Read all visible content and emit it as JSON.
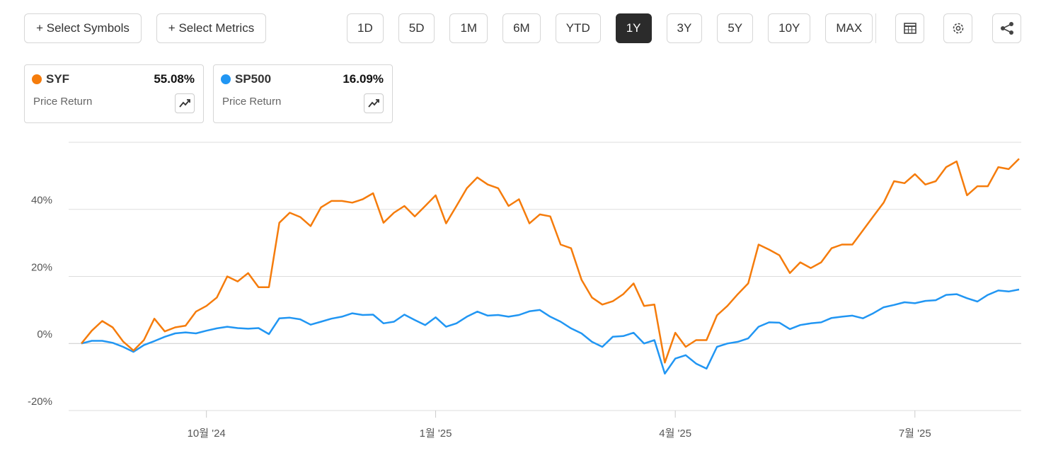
{
  "toolbar": {
    "select_symbols": "+ Select Symbols",
    "select_metrics": "+ Select Metrics",
    "periods": [
      "1D",
      "5D",
      "1M",
      "6M",
      "YTD",
      "1Y",
      "3Y",
      "5Y",
      "10Y",
      "MAX"
    ],
    "selected_period_index": 5
  },
  "cards": [
    {
      "return": "55.08%",
      "metric": "Price Return"
    },
    {
      "return": "16.09%",
      "metric": "Price Return"
    }
  ],
  "chart_data": {
    "type": "line",
    "categories": [
      null,
      null,
      null,
      null,
      null,
      null,
      null,
      null,
      null,
      null,
      null,
      null,
      "10월 '24",
      null,
      null,
      null,
      null,
      null,
      null,
      null,
      null,
      null,
      null,
      null,
      null,
      null,
      null,
      null,
      null,
      null,
      null,
      null,
      null,
      null,
      "1월 '25",
      null,
      null,
      null,
      null,
      null,
      null,
      null,
      null,
      null,
      null,
      null,
      null,
      null,
      null,
      null,
      null,
      null,
      null,
      null,
      null,
      null,
      null,
      "4월 '25",
      null,
      null,
      null,
      null,
      null,
      null,
      null,
      null,
      null,
      null,
      null,
      null,
      null,
      null,
      null,
      null,
      null,
      null,
      null,
      null,
      null,
      null,
      "7월 '25",
      null,
      null,
      null,
      null,
      null,
      null,
      null,
      null,
      null,
      null
    ],
    "series": [
      {
        "name": "SYF",
        "color": "#f57c0c",
        "values": [
          0,
          3.8,
          6.7,
          4.8,
          0.6,
          -2.1,
          1,
          7.4,
          3.6,
          4.8,
          5.3,
          9.5,
          11.2,
          13.7,
          20,
          18.5,
          21,
          16.8,
          16.8,
          36,
          39,
          37.7,
          35,
          40.6,
          42.5,
          42.5,
          42,
          43,
          44.8,
          36,
          39,
          41,
          37.9,
          41,
          44.2,
          35.8,
          41,
          46.3,
          49.5,
          47.4,
          46.3,
          41,
          43,
          35.8,
          38.5,
          37.9,
          29.5,
          28.4,
          19,
          13.7,
          11.6,
          12.6,
          14.7,
          17.9,
          11.2,
          11.6,
          -5.7,
          3.2,
          -1,
          1,
          1,
          8.4,
          11.2,
          14.7,
          17.9,
          29.5,
          28,
          26.3,
          21,
          24.2,
          22.5,
          24.2,
          28.4,
          29.5,
          29.5,
          33.7,
          37.9,
          42,
          48.4,
          47.8,
          50.5,
          47.4,
          48.4,
          52.6,
          54.3,
          44.2,
          46.9,
          46.9,
          52.6,
          52,
          55.08
        ]
      },
      {
        "name": "SP500",
        "color": "#2196f3",
        "values": [
          0,
          0.8,
          0.8,
          0.2,
          -1,
          -2.5,
          -0.5,
          0.7,
          2,
          3,
          3.3,
          3,
          3.8,
          4.5,
          5,
          4.6,
          4.4,
          4.6,
          2.8,
          7.5,
          7.7,
          7.2,
          5.6,
          6.5,
          7.4,
          8,
          9,
          8.5,
          8.6,
          6,
          6.5,
          8.6,
          7,
          5.5,
          7.8,
          5,
          6,
          8,
          9.5,
          8.3,
          8.5,
          8,
          8.5,
          9.6,
          10,
          8,
          6.5,
          4.5,
          3,
          0.5,
          -1,
          2,
          2.2,
          3.2,
          0,
          1,
          -9,
          -4.5,
          -3.5,
          -6,
          -7.5,
          -1,
          0,
          0.5,
          1.5,
          5,
          6.3,
          6.2,
          4.3,
          5.5,
          6,
          6.3,
          7.6,
          8,
          8.3,
          7.5,
          9,
          10.8,
          11.5,
          12.3,
          12,
          12.7,
          12.9,
          14.5,
          14.7,
          13.5,
          12.5,
          14.5,
          15.8,
          15.5,
          16.09
        ]
      }
    ],
    "ylim": [
      -20,
      60
    ],
    "yticks": [
      {
        "value": -20,
        "label": "-20%"
      },
      {
        "value": 0,
        "label": "0%"
      },
      {
        "value": 20,
        "label": "20%"
      },
      {
        "value": 40,
        "label": "40%"
      }
    ],
    "grid": true
  }
}
